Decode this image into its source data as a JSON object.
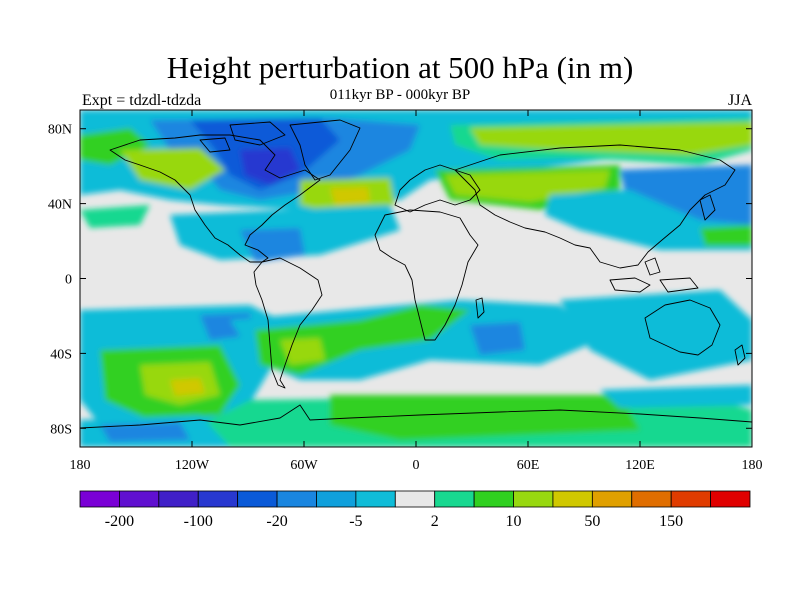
{
  "title": "Height perturbation at 500 hPa (in m)",
  "subtitle": "011kyr BP - 000kyr BP",
  "left_label": "Expt = tdzdl-tdzda",
  "right_label": "JJA",
  "map": {
    "lon_range": [
      -180,
      180
    ],
    "lat_range": [
      -90,
      90
    ],
    "x_ticks": [
      {
        "lon": -180,
        "label": "180"
      },
      {
        "lon": -120,
        "label": "120W"
      },
      {
        "lon": -60,
        "label": "60W"
      },
      {
        "lon": 0,
        "label": "0"
      },
      {
        "lon": 60,
        "label": "60E"
      },
      {
        "lon": 120,
        "label": "120E"
      },
      {
        "lon": 180,
        "label": "180"
      }
    ],
    "y_ticks": [
      {
        "lat": 80,
        "label": "80N"
      },
      {
        "lat": 40,
        "label": "40N"
      },
      {
        "lat": 0,
        "label": "0"
      },
      {
        "lat": -40,
        "label": "40S"
      },
      {
        "lat": -80,
        "label": "80S"
      }
    ],
    "background_color": "#e8e8e8"
  },
  "colorbar": {
    "colors": [
      "#7a00d6",
      "#6010d0",
      "#4020c8",
      "#2838d0",
      "#0a5ad8",
      "#1a86e0",
      "#10a0dc",
      "#10bcd8",
      "#e8e8e8",
      "#18d890",
      "#30d020",
      "#98d810",
      "#d0c800",
      "#e0a000",
      "#e06e00",
      "#e03c00",
      "#e00000"
    ],
    "tick_labels": [
      {
        "boundary": 1,
        "label": "-200"
      },
      {
        "boundary": 3,
        "label": "-100"
      },
      {
        "boundary": 5,
        "label": "-20"
      },
      {
        "boundary": 7,
        "label": "-5"
      },
      {
        "boundary": 9,
        "label": "2"
      },
      {
        "boundary": 11,
        "label": "10"
      },
      {
        "boundary": 13,
        "label": "50"
      },
      {
        "boundary": 15,
        "label": "150"
      }
    ]
  }
}
